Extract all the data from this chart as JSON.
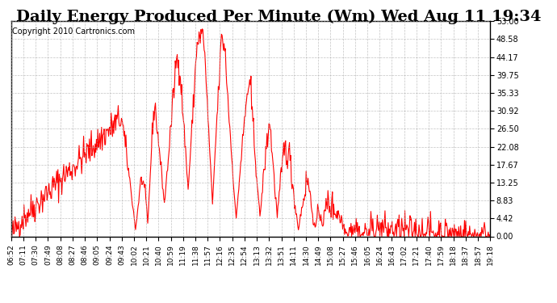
{
  "title": "Daily Energy Produced Per Minute (Wm) Wed Aug 11 19:34",
  "copyright": "Copyright 2010 Cartronics.com",
  "y_ticks": [
    0.0,
    4.42,
    8.83,
    13.25,
    17.67,
    22.08,
    26.5,
    30.92,
    35.33,
    39.75,
    44.17,
    48.58,
    53.0
  ],
  "y_min": 0.0,
  "y_max": 53.0,
  "line_color": "#ff0000",
  "background_color": "#ffffff",
  "grid_color": "#aaaaaa",
  "title_fontsize": 14,
  "copyright_fontsize": 7,
  "x_labels": [
    "06:52",
    "07:11",
    "07:30",
    "07:49",
    "08:08",
    "08:27",
    "08:46",
    "09:05",
    "09:24",
    "09:43",
    "10:02",
    "10:21",
    "10:40",
    "10:59",
    "11:19",
    "11:38",
    "11:57",
    "12:16",
    "12:35",
    "12:54",
    "13:13",
    "13:32",
    "13:51",
    "14:11",
    "14:30",
    "14:49",
    "15:08",
    "15:27",
    "15:46",
    "16:05",
    "16:24",
    "16:43",
    "17:02",
    "17:21",
    "17:40",
    "17:59",
    "18:18",
    "18:37",
    "18:57",
    "19:18"
  ]
}
